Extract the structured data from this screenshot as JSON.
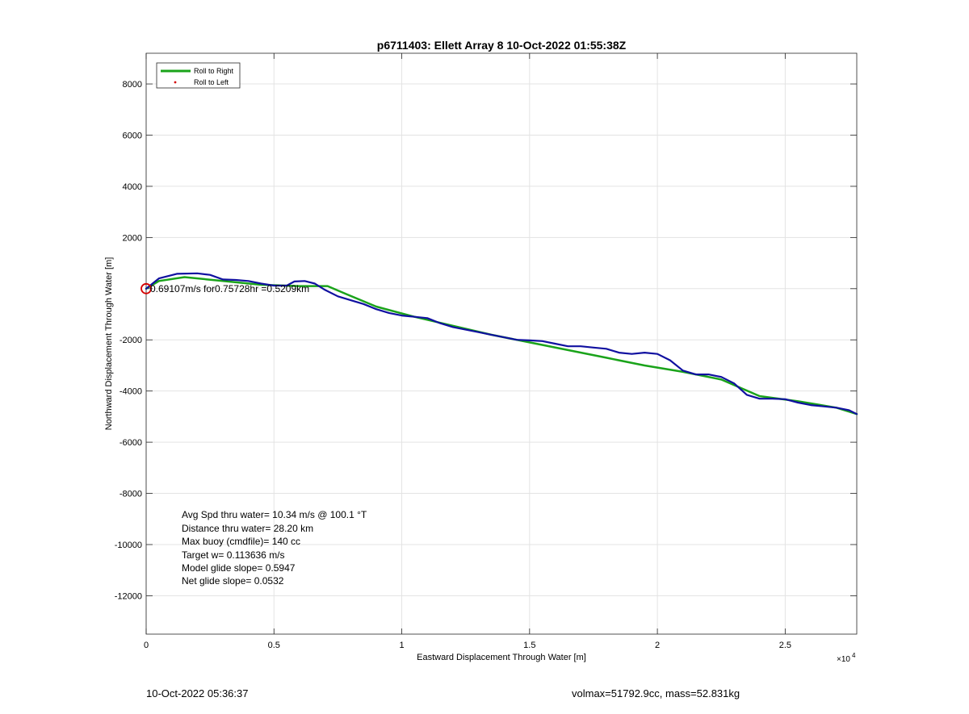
{
  "chart_data": {
    "type": "line",
    "title": "p6711403: Ellett Array 8 10-Oct-2022 01:55:38Z",
    "xlabel": "Eastward Displacement Through Water [m]",
    "ylabel": "Northward Displacement Through Water [m]",
    "xlim": [
      0,
      27800
    ],
    "ylim": [
      -13500,
      9200
    ],
    "x_ticks": [
      0,
      5000,
      10000,
      15000,
      20000,
      25000
    ],
    "x_tick_labels": [
      "0",
      "0.5",
      "1",
      "1.5",
      "2",
      "2.5"
    ],
    "x_exponent_label": "×10",
    "x_exponent_power": "4",
    "y_ticks": [
      8000,
      6000,
      4000,
      2000,
      0,
      -2000,
      -4000,
      -6000,
      -8000,
      -10000,
      -12000
    ],
    "y_tick_labels": [
      "8000",
      "6000",
      "4000",
      "2000",
      "",
      "-2000",
      "-4000",
      "-6000",
      "-8000",
      "-10000",
      "-12000"
    ],
    "grid": true,
    "legend_position": "top-left",
    "legend": [
      {
        "label": "Roll to Right",
        "color": "#1aa31a",
        "style": "line"
      },
      {
        "label": "Roll to Left",
        "color": "#d40000",
        "style": "dot"
      }
    ],
    "series": [
      {
        "name": "Roll to Right",
        "color": "#1aa31a",
        "x": [
          0,
          500,
          1500,
          3000,
          4500,
          6000,
          7100,
          7800,
          9000,
          10500,
          12000,
          13500,
          15000,
          16500,
          18000,
          19500,
          21000,
          22500,
          24000,
          25500,
          27000,
          27800
        ],
        "y": [
          0,
          300,
          450,
          300,
          150,
          100,
          100,
          -200,
          -700,
          -1100,
          -1450,
          -1800,
          -2100,
          -2400,
          -2700,
          -3000,
          -3250,
          -3550,
          -4200,
          -4400,
          -4650,
          -4900
        ]
      },
      {
        "name": "",
        "color": "#1010a0",
        "x": [
          0,
          500,
          1200,
          2000,
          2500,
          3000,
          3500,
          4000,
          4500,
          5000,
          5500,
          5800,
          6200,
          6600,
          7000,
          7500,
          8000,
          8500,
          9000,
          9500,
          10000,
          10500,
          11000,
          11500,
          12000,
          12500,
          13000,
          13500,
          14000,
          14500,
          15000,
          15500,
          16000,
          16500,
          17000,
          17500,
          18000,
          18500,
          19000,
          19500,
          20000,
          20500,
          21000,
          21500,
          22000,
          22500,
          23000,
          23500,
          24000,
          24500,
          25000,
          25500,
          26000,
          26500,
          27000,
          27500,
          27800
        ],
        "y": [
          0,
          400,
          580,
          600,
          540,
          360,
          340,
          300,
          200,
          120,
          120,
          280,
          300,
          200,
          -50,
          -300,
          -450,
          -600,
          -800,
          -950,
          -1050,
          -1100,
          -1150,
          -1350,
          -1500,
          -1600,
          -1700,
          -1800,
          -1900,
          -2000,
          -2020,
          -2050,
          -2150,
          -2250,
          -2250,
          -2300,
          -2350,
          -2500,
          -2550,
          -2500,
          -2550,
          -2800,
          -3200,
          -3350,
          -3350,
          -3450,
          -3700,
          -4150,
          -4300,
          -4300,
          -4320,
          -4450,
          -4550,
          -4600,
          -4650,
          -4750,
          -4900
        ]
      }
    ],
    "start_marker": {
      "x": 0,
      "y": 0,
      "color": "#d40000"
    },
    "annotations": [
      {
        "text": "0.69107m/s for0.75728hr =0.5209km",
        "x": 0,
        "y": 0
      },
      {
        "text": "Avg Spd thru water= 10.34 m/s @ 100.1 °T"
      },
      {
        "text": "Distance thru water= 28.20 km"
      },
      {
        "text": "Max buoy (cmdfile)= 140 cc"
      },
      {
        "text": "Target w= 0.113636 m/s"
      },
      {
        "text": "Model glide slope= 0.5947"
      },
      {
        "text": "Net glide slope= 0.0532"
      }
    ]
  },
  "footer": {
    "left": "10-Oct-2022 05:36:37",
    "right": "volmax=51792.9cc, mass=52.831kg"
  }
}
